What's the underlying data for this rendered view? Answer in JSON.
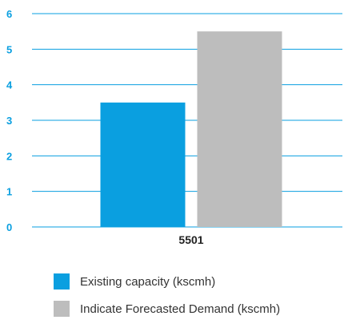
{
  "chart_data": {
    "type": "bar",
    "categories": [
      "5501"
    ],
    "series": [
      {
        "name": "Existing capacity (kscmh)",
        "values": [
          3.5
        ],
        "color": "#0a9fe0"
      },
      {
        "name": "Indicate Forecasted Demand (kscmh)",
        "values": [
          5.5
        ],
        "color": "#bdbdbd"
      }
    ],
    "yticks": [
      "0",
      "1",
      "2",
      "3",
      "4",
      "5",
      "6"
    ],
    "ylim": [
      0,
      6
    ],
    "grid": true,
    "grid_color": "#0a9fe0",
    "tick_color": "#0a9fe0",
    "legend_position": "bottom-left"
  }
}
